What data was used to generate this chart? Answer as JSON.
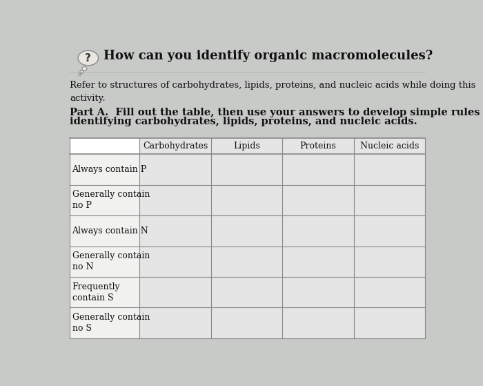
{
  "title": "How can you identify organic macromolecules?",
  "subtitle": "Refer to structures of carbohydrates, lipids, proteins, and nucleic acids while doing this\nactivity.",
  "part_a_line1": "Part A.  Fill out the table, then use your answers to develop simple rules for",
  "part_a_line2": "identifying carbohydrates, lipids, proteins, and nucleic acids.",
  "col_headers": [
    "Carbohydrates",
    "Lipids",
    "Proteins",
    "Nucleic acids"
  ],
  "row_labels": [
    "Always contain P",
    "Generally contain\nno P",
    "Always contain N",
    "Generally contain\nno N",
    "Frequently\ncontain S",
    "Generally contain\nno S"
  ],
  "background_color": "#c8cac8",
  "cell_bg_color": "#d0d2d0",
  "label_cell_bg": "#c8cac8",
  "border_color": "#888888",
  "text_color": "#111111",
  "title_fontsize": 13,
  "body_fontsize": 9.5,
  "part_a_fontsize": 10.5,
  "table_fontsize": 9.0
}
